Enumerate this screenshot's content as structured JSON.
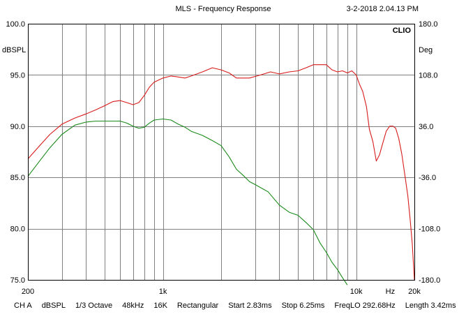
{
  "header": {
    "title": "MLS - Frequency Response",
    "timestamp": "3-2-2018 2.04.13 PM"
  },
  "chart_data": {
    "type": "line",
    "brand": "CLIO",
    "y_left_unit": "dBSPL",
    "y_right_unit": "Deg",
    "x_unit": "Hz",
    "x_scale": "log",
    "xlim": [
      200,
      20000
    ],
    "ylim_left": [
      75,
      100
    ],
    "ylim_right": [
      -180,
      180
    ],
    "x_tick_labels": [
      {
        "value": 200,
        "label": "200"
      },
      {
        "value": 1000,
        "label": "1k"
      },
      {
        "value": 10000,
        "label": "10k"
      },
      {
        "value": 20000,
        "label": "20k"
      }
    ],
    "x_unit_label_at": 15000,
    "x_gridlines": [
      300,
      400,
      500,
      600,
      700,
      800,
      900,
      1000,
      2000,
      3000,
      4000,
      5000,
      6000,
      7000,
      8000,
      9000,
      10000
    ],
    "y_left_ticks": [
      {
        "value": 100,
        "label": "100.0"
      },
      {
        "value": 95,
        "label": "95.0"
      },
      {
        "value": 90,
        "label": "90.0"
      },
      {
        "value": 85,
        "label": "85.0"
      },
      {
        "value": 80,
        "label": "80.0"
      },
      {
        "value": 75,
        "label": "75.0"
      }
    ],
    "y_right_ticks": [
      {
        "value": 180,
        "label": "180.0"
      },
      {
        "value": 108,
        "label": "108.0"
      },
      {
        "value": 36,
        "label": "36.0"
      },
      {
        "value": -36,
        "label": "-36.0"
      },
      {
        "value": -108,
        "label": "-108.0"
      },
      {
        "value": -180,
        "label": "-180.0"
      }
    ],
    "grid": true,
    "colors": {
      "red_series": "#d81b1b",
      "green_series": "#1a8a1a",
      "grid": "#808080"
    },
    "series": [
      {
        "color": "#d81b1b",
        "points": [
          [
            200,
            86.8
          ],
          [
            230,
            88.1
          ],
          [
            260,
            89.2
          ],
          [
            300,
            90.2
          ],
          [
            350,
            90.8
          ],
          [
            400,
            91.2
          ],
          [
            450,
            91.6
          ],
          [
            500,
            92.0
          ],
          [
            550,
            92.4
          ],
          [
            600,
            92.5
          ],
          [
            650,
            92.3
          ],
          [
            700,
            92.1
          ],
          [
            750,
            92.3
          ],
          [
            800,
            93.0
          ],
          [
            850,
            93.8
          ],
          [
            900,
            94.3
          ],
          [
            1000,
            94.7
          ],
          [
            1100,
            94.9
          ],
          [
            1200,
            94.8
          ],
          [
            1300,
            94.7
          ],
          [
            1400,
            94.9
          ],
          [
            1600,
            95.3
          ],
          [
            1800,
            95.7
          ],
          [
            2000,
            95.5
          ],
          [
            2200,
            95.2
          ],
          [
            2400,
            94.7
          ],
          [
            2800,
            94.7
          ],
          [
            3200,
            95.0
          ],
          [
            3600,
            95.3
          ],
          [
            4000,
            95.1
          ],
          [
            4500,
            95.3
          ],
          [
            5000,
            95.4
          ],
          [
            5500,
            95.7
          ],
          [
            6000,
            96.0
          ],
          [
            6500,
            96.0
          ],
          [
            7000,
            96.0
          ],
          [
            7500,
            95.5
          ],
          [
            8000,
            95.3
          ],
          [
            8500,
            95.4
          ],
          [
            9000,
            95.2
          ],
          [
            9500,
            95.4
          ],
          [
            10000,
            95.0
          ],
          [
            10400,
            94.1
          ],
          [
            10800,
            93.4
          ],
          [
            11300,
            91.9
          ],
          [
            11700,
            89.7
          ],
          [
            12200,
            88.5
          ],
          [
            12700,
            86.6
          ],
          [
            13200,
            87.2
          ],
          [
            13700,
            88.3
          ],
          [
            14300,
            89.5
          ],
          [
            14900,
            90.0
          ],
          [
            15500,
            90.0
          ],
          [
            16000,
            89.8
          ],
          [
            16600,
            88.8
          ],
          [
            17200,
            87.3
          ],
          [
            17800,
            85.4
          ],
          [
            18500,
            83.2
          ],
          [
            19000,
            81.0
          ],
          [
            19500,
            78.5
          ],
          [
            20000,
            75.0
          ]
        ]
      },
      {
        "color": "#1a8a1a",
        "points": [
          [
            200,
            85.1
          ],
          [
            230,
            86.6
          ],
          [
            260,
            87.9
          ],
          [
            300,
            89.2
          ],
          [
            350,
            90.1
          ],
          [
            400,
            90.4
          ],
          [
            450,
            90.5
          ],
          [
            500,
            90.5
          ],
          [
            550,
            90.5
          ],
          [
            600,
            90.5
          ],
          [
            650,
            90.3
          ],
          [
            700,
            90.0
          ],
          [
            750,
            89.8
          ],
          [
            800,
            89.9
          ],
          [
            850,
            90.3
          ],
          [
            900,
            90.6
          ],
          [
            1000,
            90.7
          ],
          [
            1100,
            90.6
          ],
          [
            1200,
            90.2
          ],
          [
            1300,
            89.9
          ],
          [
            1400,
            89.5
          ],
          [
            1600,
            89.1
          ],
          [
            1800,
            88.6
          ],
          [
            2000,
            88.1
          ],
          [
            2200,
            87.0
          ],
          [
            2400,
            85.8
          ],
          [
            2600,
            85.2
          ],
          [
            2800,
            84.6
          ],
          [
            3000,
            84.3
          ],
          [
            3500,
            83.6
          ],
          [
            4000,
            82.3
          ],
          [
            4500,
            81.6
          ],
          [
            5000,
            81.3
          ],
          [
            5500,
            80.6
          ],
          [
            6000,
            79.9
          ],
          [
            6500,
            78.6
          ],
          [
            7000,
            77.7
          ],
          [
            7500,
            76.7
          ],
          [
            8000,
            76.0
          ],
          [
            8500,
            75.2
          ],
          [
            9000,
            74.5
          ]
        ]
      }
    ]
  },
  "status_bar": [
    "CH A",
    "dBSPL",
    "1/3 Octave",
    "48kHz",
    "16K",
    "Rectangular",
    "Start 2.83ms",
    "Stop 6.25ms",
    "FreqLO 292.68Hz",
    "Length 3.42ms"
  ]
}
